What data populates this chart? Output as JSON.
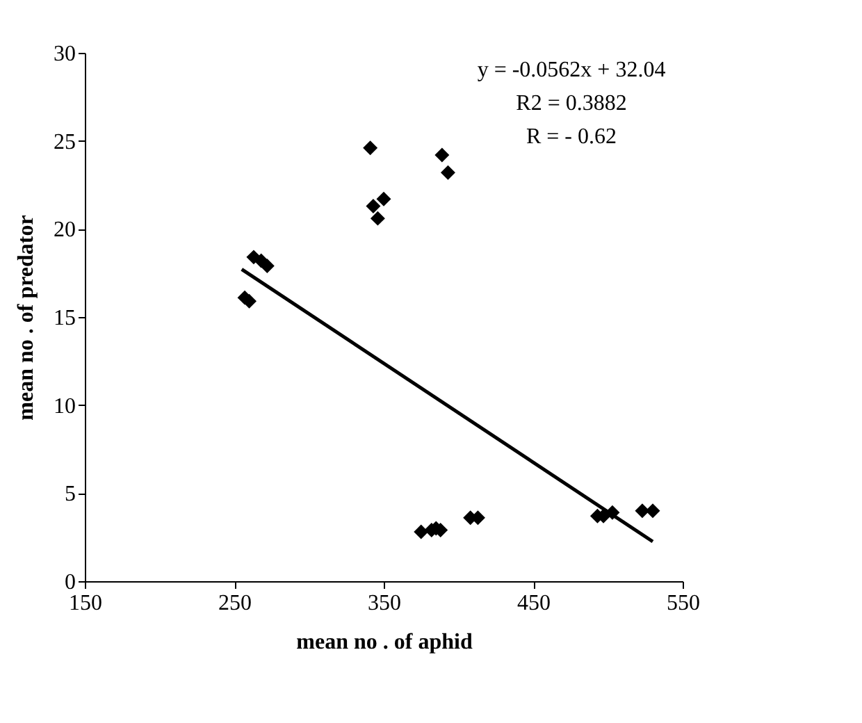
{
  "chart_data": {
    "type": "scatter",
    "xlabel": "mean no . of aphid",
    "ylabel": "mean no . of predator",
    "annotations": [
      "y = -0.0562x + 32.04",
      "R2 = 0.3882",
      "R = - 0.62"
    ],
    "series": [
      {
        "color": "#000000",
        "marker": "diamond",
        "x": [
          257,
          260,
          263,
          268,
          272,
          341,
          343,
          346,
          350,
          389,
          393,
          375,
          382,
          385,
          388,
          408,
          413,
          493,
          497,
          503,
          523,
          530
        ],
        "values": [
          16.1,
          15.9,
          18.4,
          18.2,
          17.9,
          24.6,
          21.3,
          20.6,
          21.7,
          24.2,
          23.2,
          2.8,
          2.9,
          3.0,
          2.9,
          3.6,
          3.6,
          3.7,
          3.7,
          3.9,
          4.0,
          4.0
        ]
      },
      {
        "type": "line",
        "color": "#000000",
        "marker": "none",
        "line_style": "solid",
        "x": [
          255,
          530
        ],
        "values": [
          17.71,
          2.25
        ]
      }
    ],
    "xlim": [
      150,
      550
    ],
    "xticks": [
      150,
      250,
      350,
      450,
      550
    ],
    "ylim": [
      0,
      30
    ],
    "yticks": [
      0,
      5,
      10,
      15,
      20,
      25,
      30
    ],
    "grid": false
  }
}
